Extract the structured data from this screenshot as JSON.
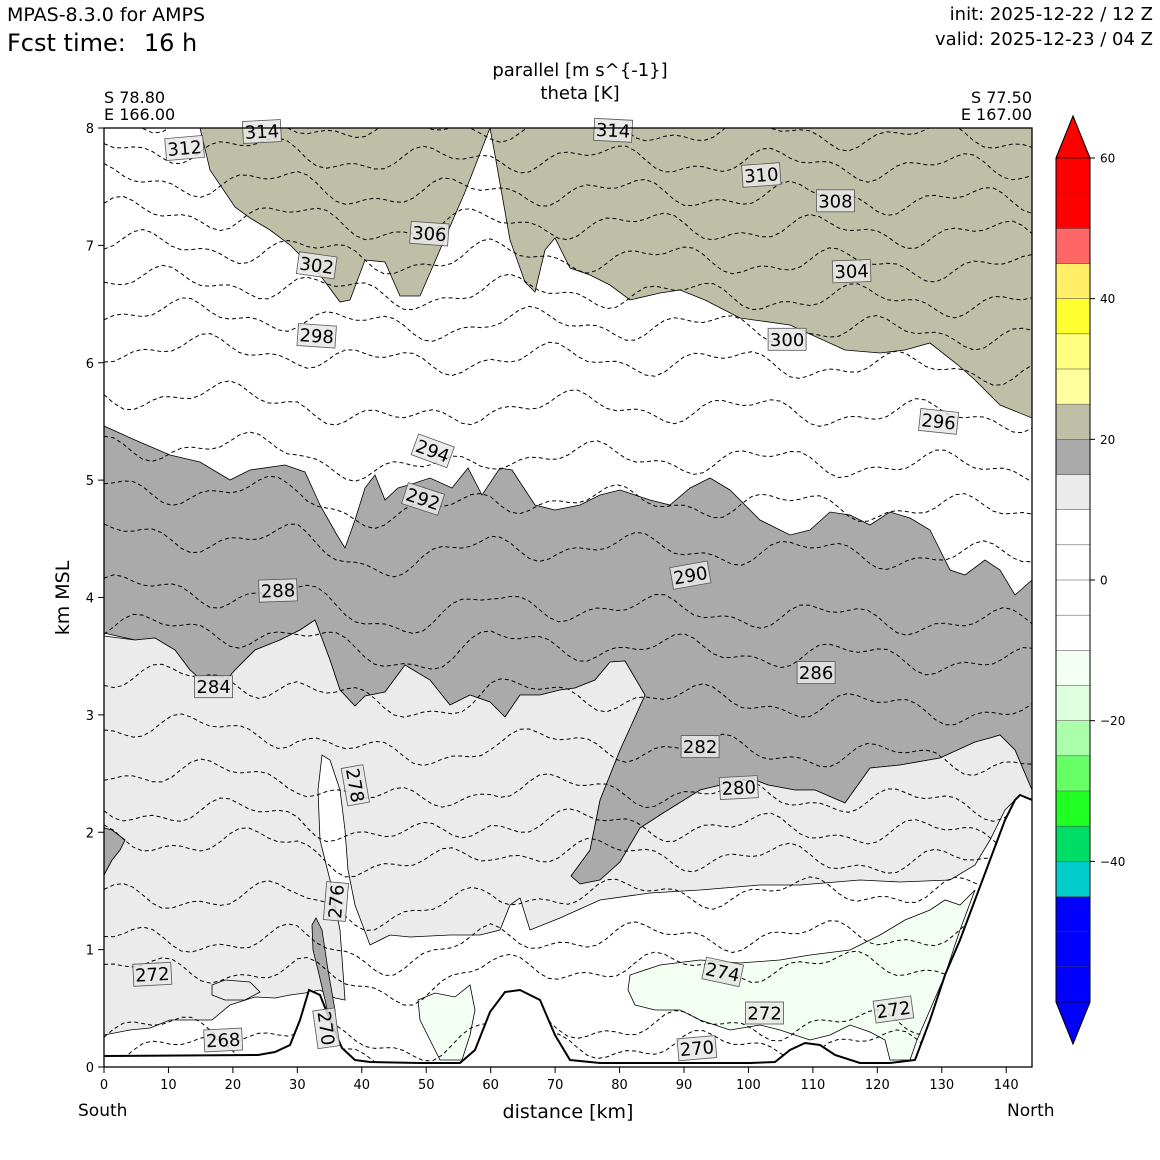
{
  "header": {
    "model": "MPAS-8.3.0 for AMPS",
    "fcst_label": "Fcst time:",
    "fcst_value": "16 h",
    "init": "init: 2025-12-22 / 12 Z",
    "valid": "valid: 2025-12-23 / 04 Z"
  },
  "corners": {
    "left_lat": "S 78.80",
    "left_lon": "E 166.00",
    "right_lat": "S 77.50",
    "right_lon": "E 167.00"
  },
  "end_labels": {
    "left": "South",
    "right": "North"
  },
  "chart_data": {
    "type": "contour-cross-section",
    "title": "parallel [m s^{-1}]",
    "subtitle": "theta [K]",
    "xlabel": "distance [km]",
    "ylabel": "km MSL",
    "xlim": [
      0,
      144
    ],
    "ylim": [
      0,
      8
    ],
    "x_ticks": [
      0,
      10,
      20,
      30,
      40,
      50,
      60,
      70,
      80,
      90,
      100,
      110,
      120,
      130,
      140
    ],
    "y_ticks": [
      0,
      1,
      2,
      3,
      4,
      5,
      6,
      7,
      8
    ],
    "colorbar": {
      "min": -60,
      "max": 60,
      "step": 5,
      "tick_values": [
        -40,
        -20,
        0,
        20,
        40,
        60
      ],
      "tick_labels": [
        "−40",
        "−20",
        "0",
        "20",
        "40",
        "60"
      ],
      "colors": [
        "#0000ff",
        "#0000ff",
        "#0000ff",
        "#00cccc",
        "#00dd66",
        "#22ff22",
        "#66ff66",
        "#aaffaa",
        "#ddffdd",
        "#f2fff2",
        "#ffffff",
        "#ffffff",
        "#ffffff",
        "#ffffff",
        "#ebebeb",
        "#aaaaaa",
        "#bfbfa8",
        "#ffffa0",
        "#ffff80",
        "#ffff30",
        "#ffee66",
        "#ff6666",
        "#ff0000",
        "#ff0000"
      ]
    },
    "theta_levels": [
      268,
      270,
      272,
      274,
      276,
      278,
      280,
      282,
      284,
      286,
      288,
      290,
      292,
      294,
      296,
      298,
      300,
      302,
      304,
      306,
      308,
      310,
      312,
      314
    ],
    "theta_labels": [
      {
        "text": "314",
        "x": 24.5,
        "y": 7.97,
        "angle": -3
      },
      {
        "text": "312",
        "x": 12.5,
        "y": 7.83,
        "angle": -5
      },
      {
        "text": "314",
        "x": 79,
        "y": 7.98,
        "angle": 3
      },
      {
        "text": "310",
        "x": 102,
        "y": 7.6,
        "angle": -4
      },
      {
        "text": "308",
        "x": 113.5,
        "y": 7.38,
        "angle": 0
      },
      {
        "text": "306",
        "x": 50.5,
        "y": 7.1,
        "angle": 4
      },
      {
        "text": "304",
        "x": 116,
        "y": 6.78,
        "angle": -2
      },
      {
        "text": "302",
        "x": 33,
        "y": 6.83,
        "angle": 8
      },
      {
        "text": "300",
        "x": 106,
        "y": 6.2,
        "angle": 0
      },
      {
        "text": "298",
        "x": 33,
        "y": 6.23,
        "angle": 4
      },
      {
        "text": "296",
        "x": 129.5,
        "y": 5.5,
        "angle": 6
      },
      {
        "text": "294",
        "x": 51,
        "y": 5.25,
        "angle": 20
      },
      {
        "text": "292",
        "x": 49.5,
        "y": 4.84,
        "angle": 18
      },
      {
        "text": "290",
        "x": 91,
        "y": 4.19,
        "angle": -10
      },
      {
        "text": "288",
        "x": 27,
        "y": 4.06,
        "angle": -2
      },
      {
        "text": "286",
        "x": 110.5,
        "y": 3.36,
        "angle": 0
      },
      {
        "text": "284",
        "x": 17,
        "y": 3.24,
        "angle": 0
      },
      {
        "text": "282",
        "x": 92.5,
        "y": 2.73,
        "angle": 0
      },
      {
        "text": "280",
        "x": 98.5,
        "y": 2.38,
        "angle": -3
      },
      {
        "text": "278",
        "x": 39,
        "y": 2.4,
        "angle": 80
      },
      {
        "text": "276",
        "x": 36,
        "y": 1.41,
        "angle": -85
      },
      {
        "text": "274",
        "x": 96,
        "y": 0.81,
        "angle": 12
      },
      {
        "text": "272",
        "x": 7.5,
        "y": 0.79,
        "angle": -3
      },
      {
        "text": "272",
        "x": 102.5,
        "y": 0.46,
        "angle": 0
      },
      {
        "text": "272",
        "x": 122.5,
        "y": 0.49,
        "angle": -8
      },
      {
        "text": "270",
        "x": 34.5,
        "y": 0.33,
        "angle": 82
      },
      {
        "text": "270",
        "x": 92,
        "y": 0.16,
        "angle": -5
      },
      {
        "text": "268",
        "x": 18.5,
        "y": 0.23,
        "angle": -3
      }
    ]
  }
}
